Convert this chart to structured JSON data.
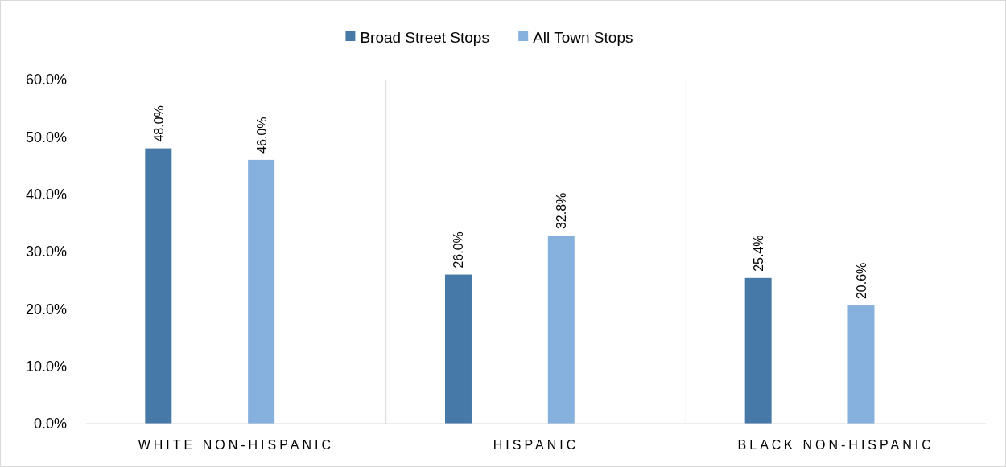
{
  "chart_data": {
    "type": "bar",
    "categories": [
      "WHITE NON-HISPANIC",
      "HISPANIC",
      "BLACK NON-HISPANIC"
    ],
    "series": [
      {
        "name": "Broad Street Stops",
        "color": "#4779a8",
        "values": [
          48.0,
          26.0,
          25.4
        ],
        "value_labels": [
          "48.0%",
          "26.0%",
          "25.4%"
        ]
      },
      {
        "name": "All Town Stops",
        "color": "#86b0de",
        "values": [
          46.0,
          32.8,
          20.6
        ],
        "value_labels": [
          "46.0%",
          "32.8%",
          "20.6%"
        ]
      }
    ],
    "ylim": [
      0,
      60
    ],
    "yticks": [
      {
        "value": 0,
        "label": "0.0%"
      },
      {
        "value": 10,
        "label": "10.0%"
      },
      {
        "value": 20,
        "label": "20.0%"
      },
      {
        "value": 30,
        "label": "30.0%"
      },
      {
        "value": 40,
        "label": "40.0%"
      },
      {
        "value": 50,
        "label": "50.0%"
      },
      {
        "value": 60,
        "label": "60.0%"
      }
    ],
    "grid": "x",
    "legend": "top"
  }
}
